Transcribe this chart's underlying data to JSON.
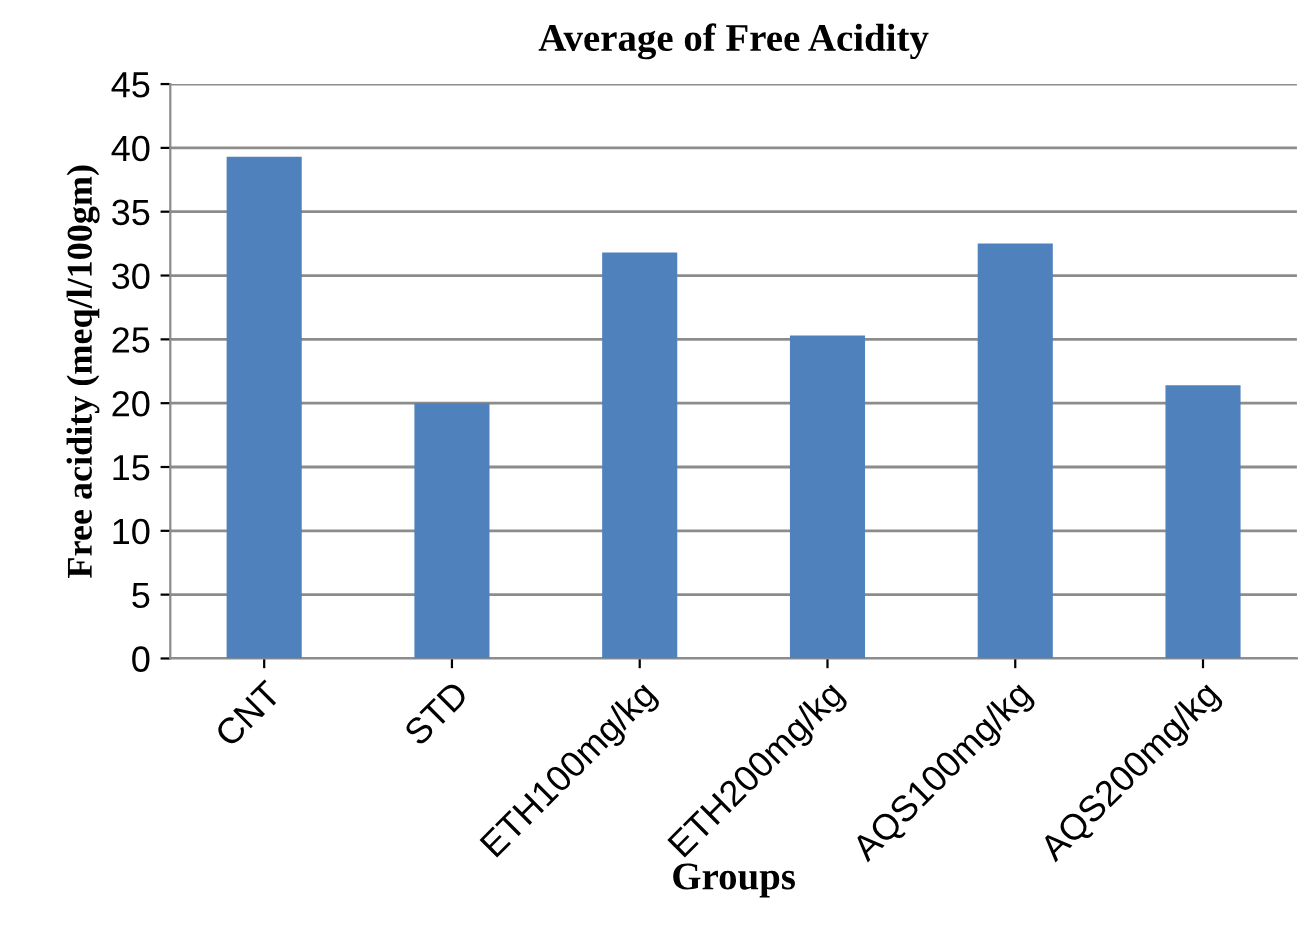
{
  "chart_data": {
    "type": "bar",
    "title": "Average of Free Acidity",
    "xlabel": "Groups",
    "ylabel": "Free acidity (meq/l/100gm)",
    "categories": [
      "CNT",
      "STD",
      "ETH100mg/kg",
      "ETH200mg/kg",
      "AQS100mg/kg",
      "AQS200mg/kg"
    ],
    "values": [
      39.3,
      20.0,
      31.8,
      25.3,
      32.5,
      21.4
    ],
    "color": "#4f81bd",
    "ylim": [
      0,
      45
    ],
    "yticks": [
      0,
      5,
      10,
      15,
      20,
      25,
      30,
      35,
      40,
      45
    ],
    "grid": "y"
  }
}
